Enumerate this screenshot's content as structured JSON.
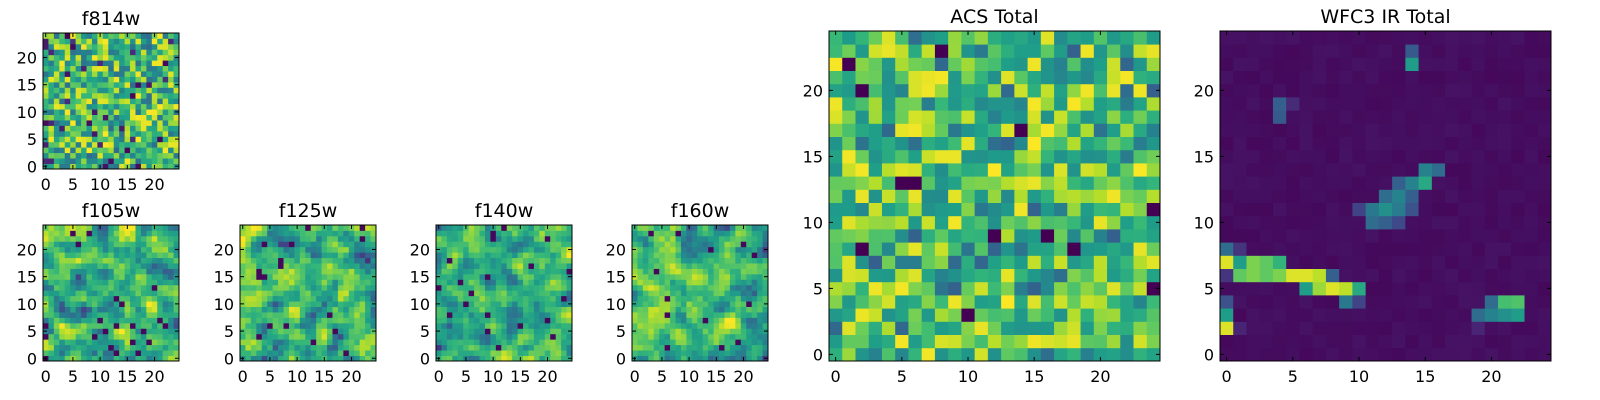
{
  "figure": {
    "background": "#ffffff",
    "colormap": "viridis"
  },
  "chart_data": [
    {
      "type": "heatmap",
      "id": "f814w",
      "title": "f814w",
      "nx": 25,
      "ny": 25,
      "xlim": [
        0,
        24
      ],
      "ylim": [
        0,
        24
      ],
      "xticks": [
        0,
        5,
        10,
        15,
        20
      ],
      "yticks": [
        0,
        5,
        10,
        15,
        20
      ],
      "value_range": [
        0,
        1
      ],
      "pattern": "noise",
      "seed": 11
    },
    {
      "type": "heatmap",
      "id": "f105w",
      "title": "f105w",
      "nx": 25,
      "ny": 25,
      "xlim": [
        0,
        24
      ],
      "ylim": [
        0,
        24
      ],
      "xticks": [
        0,
        5,
        10,
        15,
        20
      ],
      "yticks": [
        0,
        5,
        10,
        15,
        20
      ],
      "value_range": [
        0,
        1
      ],
      "pattern": "smooth",
      "seed": 23
    },
    {
      "type": "heatmap",
      "id": "f125w",
      "title": "f125w",
      "nx": 25,
      "ny": 25,
      "xlim": [
        0,
        24
      ],
      "ylim": [
        0,
        24
      ],
      "xticks": [
        0,
        5,
        10,
        15,
        20
      ],
      "yticks": [
        0,
        5,
        10,
        15,
        20
      ],
      "value_range": [
        0,
        1
      ],
      "pattern": "smooth",
      "seed": 37
    },
    {
      "type": "heatmap",
      "id": "f140w",
      "title": "f140w",
      "nx": 25,
      "ny": 25,
      "xlim": [
        0,
        24
      ],
      "ylim": [
        0,
        24
      ],
      "xticks": [
        0,
        5,
        10,
        15,
        20
      ],
      "yticks": [
        0,
        5,
        10,
        15,
        20
      ],
      "value_range": [
        0,
        1
      ],
      "pattern": "smooth",
      "seed": 41
    },
    {
      "type": "heatmap",
      "id": "f160w",
      "title": "f160w",
      "nx": 25,
      "ny": 25,
      "xlim": [
        0,
        24
      ],
      "ylim": [
        0,
        24
      ],
      "xticks": [
        0,
        5,
        10,
        15,
        20
      ],
      "yticks": [
        0,
        5,
        10,
        15,
        20
      ],
      "value_range": [
        0,
        1
      ],
      "pattern": "smooth",
      "seed": 53
    },
    {
      "type": "heatmap",
      "id": "acs_total",
      "title": "ACS Total",
      "nx": 25,
      "ny": 25,
      "xlim": [
        0,
        24
      ],
      "ylim": [
        0,
        24
      ],
      "xticks": [
        0,
        5,
        10,
        15,
        20
      ],
      "yticks": [
        0,
        5,
        10,
        15,
        20
      ],
      "value_range": [
        0,
        1
      ],
      "pattern": "bright_noise",
      "seed": 67,
      "dark_cells": [
        [
          8,
          23
        ],
        [
          5,
          13
        ],
        [
          2,
          20
        ],
        [
          1,
          22
        ],
        [
          16,
          9
        ],
        [
          18,
          8
        ],
        [
          12,
          9
        ],
        [
          14,
          17
        ],
        [
          24,
          11
        ],
        [
          2,
          8
        ],
        [
          10,
          3
        ],
        [
          6,
          13
        ],
        [
          24,
          5
        ]
      ]
    },
    {
      "type": "heatmap",
      "id": "wfc3_ir_total",
      "title": "WFC3 IR Total",
      "nx": 25,
      "ny": 25,
      "xlim": [
        0,
        24
      ],
      "ylim": [
        0,
        24
      ],
      "xticks": [
        0,
        5,
        10,
        15,
        20
      ],
      "yticks": [
        0,
        5,
        10,
        15,
        20
      ],
      "value_range": [
        0,
        1
      ],
      "pattern": "sparse",
      "background_level": 0.02,
      "features": [
        {
          "x": 14,
          "y": 23,
          "v": 0.28
        },
        {
          "x": 14,
          "y": 22,
          "v": 0.55
        },
        {
          "x": 4,
          "y": 19,
          "v": 0.3
        },
        {
          "x": 5,
          "y": 19,
          "v": 0.12
        },
        {
          "x": 4,
          "y": 18,
          "v": 0.28
        },
        {
          "x": 15,
          "y": 14,
          "v": 0.45
        },
        {
          "x": 16,
          "y": 14,
          "v": 0.35
        },
        {
          "x": 15,
          "y": 13,
          "v": 0.6
        },
        {
          "x": 14,
          "y": 13,
          "v": 0.45
        },
        {
          "x": 13,
          "y": 13,
          "v": 0.3
        },
        {
          "x": 13,
          "y": 12,
          "v": 0.45
        },
        {
          "x": 12,
          "y": 12,
          "v": 0.35
        },
        {
          "x": 14,
          "y": 12,
          "v": 0.3
        },
        {
          "x": 10,
          "y": 11,
          "v": 0.2
        },
        {
          "x": 11,
          "y": 11,
          "v": 0.4
        },
        {
          "x": 12,
          "y": 11,
          "v": 0.5
        },
        {
          "x": 13,
          "y": 11,
          "v": 0.42
        },
        {
          "x": 14,
          "y": 11,
          "v": 0.25
        },
        {
          "x": 11,
          "y": 10,
          "v": 0.35
        },
        {
          "x": 12,
          "y": 10,
          "v": 0.3
        },
        {
          "x": 13,
          "y": 10,
          "v": 0.22
        },
        {
          "x": 0,
          "y": 8,
          "v": 0.35
        },
        {
          "x": 1,
          "y": 8,
          "v": 0.15
        },
        {
          "x": 0,
          "y": 7,
          "v": 0.95
        },
        {
          "x": 1,
          "y": 7,
          "v": 0.55
        },
        {
          "x": 2,
          "y": 7,
          "v": 0.8
        },
        {
          "x": 3,
          "y": 7,
          "v": 0.75
        },
        {
          "x": 4,
          "y": 7,
          "v": 0.65
        },
        {
          "x": 0,
          "y": 6,
          "v": 0.15
        },
        {
          "x": 1,
          "y": 6,
          "v": 0.75
        },
        {
          "x": 2,
          "y": 6,
          "v": 0.8
        },
        {
          "x": 3,
          "y": 6,
          "v": 0.75
        },
        {
          "x": 4,
          "y": 6,
          "v": 0.8
        },
        {
          "x": 5,
          "y": 6,
          "v": 0.95
        },
        {
          "x": 6,
          "y": 6,
          "v": 0.95
        },
        {
          "x": 7,
          "y": 6,
          "v": 0.9
        },
        {
          "x": 8,
          "y": 6,
          "v": 0.3
        },
        {
          "x": 6,
          "y": 5,
          "v": 0.55
        },
        {
          "x": 7,
          "y": 5,
          "v": 0.85
        },
        {
          "x": 8,
          "y": 5,
          "v": 0.95
        },
        {
          "x": 9,
          "y": 5,
          "v": 0.9
        },
        {
          "x": 10,
          "y": 5,
          "v": 0.6
        },
        {
          "x": 9,
          "y": 4,
          "v": 0.4
        },
        {
          "x": 10,
          "y": 4,
          "v": 0.2
        },
        {
          "x": 0,
          "y": 4,
          "v": 0.25
        },
        {
          "x": 0,
          "y": 3,
          "v": 0.55
        },
        {
          "x": 20,
          "y": 4,
          "v": 0.35
        },
        {
          "x": 21,
          "y": 4,
          "v": 0.7
        },
        {
          "x": 22,
          "y": 4,
          "v": 0.72
        },
        {
          "x": 0,
          "y": 2,
          "v": 0.95
        },
        {
          "x": 19,
          "y": 3,
          "v": 0.35
        },
        {
          "x": 20,
          "y": 3,
          "v": 0.45
        },
        {
          "x": 21,
          "y": 3,
          "v": 0.5
        },
        {
          "x": 22,
          "y": 3,
          "v": 0.55
        },
        {
          "x": 1,
          "y": 2,
          "v": 0.1
        },
        {
          "x": 19,
          "y": 2,
          "v": 0.1
        }
      ]
    }
  ]
}
